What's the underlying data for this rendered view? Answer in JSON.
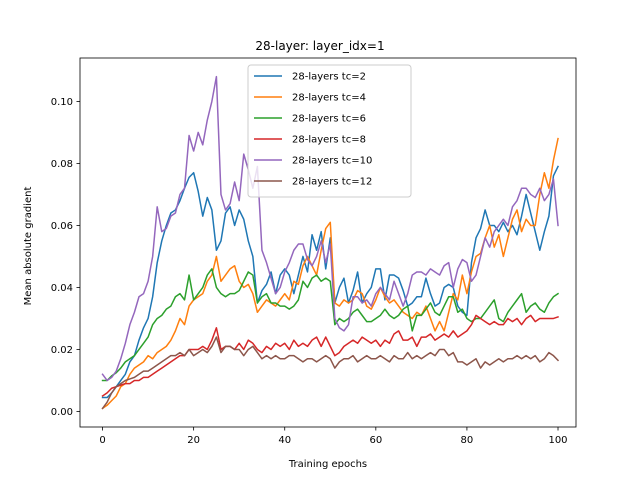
{
  "chart_data": {
    "type": "line",
    "title": "28-layer: layer_idx=1",
    "xlabel": "Training epochs",
    "ylabel": "Mean absolute gradient",
    "xlim": [
      -4.95,
      103.95
    ],
    "ylim": [
      -0.005,
      0.114
    ],
    "xticks": [
      0,
      20,
      40,
      60,
      80,
      100
    ],
    "yticks": [
      0.0,
      0.02,
      0.04,
      0.06,
      0.08,
      0.1
    ],
    "ytick_labels": [
      "0.00",
      "0.02",
      "0.04",
      "0.06",
      "0.08",
      "0.10"
    ],
    "grid": false,
    "legend": "top-center",
    "series": [
      {
        "name": "28-layers tc=2",
        "color": "#1f77b4",
        "values": [
          0.0045,
          0.0045,
          0.006,
          0.008,
          0.01,
          0.012,
          0.016,
          0.018,
          0.023,
          0.027,
          0.03,
          0.037,
          0.048,
          0.055,
          0.06,
          0.064,
          0.065,
          0.068,
          0.072,
          0.0755,
          0.077,
          0.071,
          0.063,
          0.069,
          0.065,
          0.052,
          0.055,
          0.064,
          0.066,
          0.06,
          0.065,
          0.062,
          0.055,
          0.05,
          0.035,
          0.039,
          0.041,
          0.045,
          0.038,
          0.044,
          0.046,
          0.044,
          0.038,
          0.044,
          0.05,
          0.045,
          0.057,
          0.052,
          0.058,
          0.046,
          0.056,
          0.035,
          0.04,
          0.043,
          0.035,
          0.039,
          0.045,
          0.035,
          0.038,
          0.04,
          0.046,
          0.046,
          0.036,
          0.044,
          0.044,
          0.043,
          0.039,
          0.034,
          0.035,
          0.037,
          0.037,
          0.043,
          0.038,
          0.034,
          0.035,
          0.04,
          0.041,
          0.04,
          0.034,
          0.032,
          0.031,
          0.048,
          0.056,
          0.059,
          0.065,
          0.06,
          0.06,
          0.058,
          0.061,
          0.058,
          0.06,
          0.057,
          0.063,
          0.07,
          0.064,
          0.058,
          0.052,
          0.058,
          0.063,
          0.076,
          0.079
        ]
      },
      {
        "name": "28-layers tc=4",
        "color": "#ff7f0e",
        "values": [
          0.001,
          0.002,
          0.0035,
          0.005,
          0.008,
          0.009,
          0.012,
          0.014,
          0.015,
          0.016,
          0.018,
          0.017,
          0.019,
          0.02,
          0.021,
          0.023,
          0.026,
          0.03,
          0.028,
          0.034,
          0.036,
          0.037,
          0.038,
          0.042,
          0.044,
          0.05,
          0.042,
          0.044,
          0.046,
          0.047,
          0.042,
          0.04,
          0.041,
          0.038,
          0.032,
          0.034,
          0.036,
          0.035,
          0.034,
          0.036,
          0.038,
          0.036,
          0.042,
          0.041,
          0.047,
          0.05,
          0.047,
          0.044,
          0.052,
          0.059,
          0.061,
          0.035,
          0.034,
          0.036,
          0.035,
          0.036,
          0.039,
          0.038,
          0.034,
          0.033,
          0.036,
          0.04,
          0.037,
          0.035,
          0.036,
          0.034,
          0.032,
          0.031,
          0.03,
          0.032,
          0.031,
          0.034,
          0.03,
          0.026,
          0.029,
          0.026,
          0.032,
          0.038,
          0.036,
          0.044,
          0.038,
          0.045,
          0.05,
          0.051,
          0.056,
          0.06,
          0.053,
          0.057,
          0.05,
          0.056,
          0.062,
          0.065,
          0.058,
          0.062,
          0.06,
          0.06,
          0.07,
          0.077,
          0.072,
          0.081,
          0.088
        ]
      },
      {
        "name": "28-layers tc=6",
        "color": "#2ca02c",
        "values": [
          0.01,
          0.01,
          0.0115,
          0.0125,
          0.014,
          0.016,
          0.017,
          0.018,
          0.02,
          0.022,
          0.024,
          0.028,
          0.03,
          0.031,
          0.033,
          0.034,
          0.037,
          0.038,
          0.036,
          0.044,
          0.036,
          0.038,
          0.04,
          0.044,
          0.046,
          0.04,
          0.038,
          0.037,
          0.038,
          0.038,
          0.039,
          0.042,
          0.045,
          0.044,
          0.035,
          0.037,
          0.038,
          0.035,
          0.035,
          0.034,
          0.034,
          0.033,
          0.034,
          0.036,
          0.042,
          0.04,
          0.043,
          0.044,
          0.042,
          0.043,
          0.042,
          0.028,
          0.03,
          0.029,
          0.03,
          0.032,
          0.033,
          0.031,
          0.029,
          0.029,
          0.03,
          0.031,
          0.033,
          0.031,
          0.03,
          0.031,
          0.033,
          0.034,
          0.026,
          0.031,
          0.031,
          0.033,
          0.035,
          0.032,
          0.031,
          0.034,
          0.037,
          0.037,
          0.032,
          0.033,
          0.03,
          0.029,
          0.03,
          0.03,
          0.032,
          0.034,
          0.036,
          0.03,
          0.029,
          0.032,
          0.034,
          0.036,
          0.038,
          0.032,
          0.034,
          0.035,
          0.033,
          0.032,
          0.035,
          0.037,
          0.038
        ]
      },
      {
        "name": "28-layers tc=8",
        "color": "#d62728",
        "values": [
          0.005,
          0.006,
          0.0075,
          0.008,
          0.0085,
          0.009,
          0.009,
          0.01,
          0.01,
          0.011,
          0.011,
          0.012,
          0.013,
          0.014,
          0.015,
          0.016,
          0.017,
          0.018,
          0.018,
          0.02,
          0.02,
          0.02,
          0.021,
          0.02,
          0.023,
          0.027,
          0.02,
          0.021,
          0.021,
          0.02,
          0.022,
          0.02,
          0.023,
          0.022,
          0.02,
          0.019,
          0.021,
          0.02,
          0.022,
          0.021,
          0.022,
          0.02,
          0.023,
          0.021,
          0.022,
          0.021,
          0.023,
          0.024,
          0.021,
          0.024,
          0.021,
          0.018,
          0.019,
          0.021,
          0.022,
          0.023,
          0.022,
          0.024,
          0.023,
          0.022,
          0.023,
          0.021,
          0.023,
          0.022,
          0.025,
          0.026,
          0.023,
          0.023,
          0.024,
          0.021,
          0.024,
          0.024,
          0.025,
          0.023,
          0.024,
          0.025,
          0.024,
          0.026,
          0.024,
          0.025,
          0.026,
          0.028,
          0.031,
          0.03,
          0.029,
          0.028,
          0.029,
          0.028,
          0.028,
          0.03,
          0.029,
          0.03,
          0.028,
          0.03,
          0.031,
          0.029,
          0.03,
          0.03,
          0.03,
          0.03,
          0.0305
        ]
      },
      {
        "name": "28-layers tc=10",
        "color": "#9467bd",
        "values": [
          0.012,
          0.01,
          0.011,
          0.013,
          0.017,
          0.022,
          0.028,
          0.032,
          0.037,
          0.038,
          0.042,
          0.05,
          0.066,
          0.058,
          0.059,
          0.063,
          0.064,
          0.07,
          0.072,
          0.089,
          0.084,
          0.09,
          0.086,
          0.094,
          0.1,
          0.108,
          0.07,
          0.065,
          0.067,
          0.074,
          0.068,
          0.083,
          0.078,
          0.072,
          0.079,
          0.052,
          0.048,
          0.043,
          0.038,
          0.04,
          0.045,
          0.048,
          0.052,
          0.054,
          0.054,
          0.049,
          0.047,
          0.05,
          0.055,
          0.048,
          0.054,
          0.03,
          0.027,
          0.026,
          0.028,
          0.037,
          0.037,
          0.035,
          0.036,
          0.034,
          0.038,
          0.04,
          0.038,
          0.036,
          0.042,
          0.038,
          0.034,
          0.038,
          0.044,
          0.045,
          0.045,
          0.044,
          0.046,
          0.045,
          0.044,
          0.047,
          0.048,
          0.04,
          0.046,
          0.049,
          0.048,
          0.042,
          0.044,
          0.05,
          0.056,
          0.053,
          0.058,
          0.06,
          0.062,
          0.06,
          0.066,
          0.068,
          0.072,
          0.072,
          0.07,
          0.069,
          0.072,
          0.068,
          0.07,
          0.075,
          0.06
        ]
      },
      {
        "name": "28-layers tc=12",
        "color": "#8c564b",
        "values": [
          0.001,
          0.003,
          0.006,
          0.008,
          0.009,
          0.01,
          0.0105,
          0.011,
          0.012,
          0.013,
          0.013,
          0.014,
          0.015,
          0.016,
          0.017,
          0.018,
          0.018,
          0.019,
          0.018,
          0.02,
          0.018,
          0.019,
          0.02,
          0.019,
          0.021,
          0.024,
          0.019,
          0.021,
          0.021,
          0.02,
          0.02,
          0.018,
          0.02,
          0.021,
          0.019,
          0.017,
          0.018,
          0.017,
          0.018,
          0.017,
          0.017,
          0.018,
          0.018,
          0.017,
          0.016,
          0.017,
          0.017,
          0.016,
          0.017,
          0.018,
          0.017,
          0.014,
          0.016,
          0.017,
          0.017,
          0.018,
          0.016,
          0.017,
          0.018,
          0.017,
          0.017,
          0.018,
          0.017,
          0.016,
          0.018,
          0.017,
          0.017,
          0.019,
          0.017,
          0.018,
          0.017,
          0.018,
          0.019,
          0.018,
          0.02,
          0.02,
          0.018,
          0.019,
          0.016,
          0.016,
          0.015,
          0.016,
          0.017,
          0.014,
          0.016,
          0.015,
          0.016,
          0.017,
          0.016,
          0.017,
          0.017,
          0.018,
          0.017,
          0.018,
          0.017,
          0.018,
          0.016,
          0.017,
          0.019,
          0.018,
          0.0165
        ]
      }
    ]
  }
}
